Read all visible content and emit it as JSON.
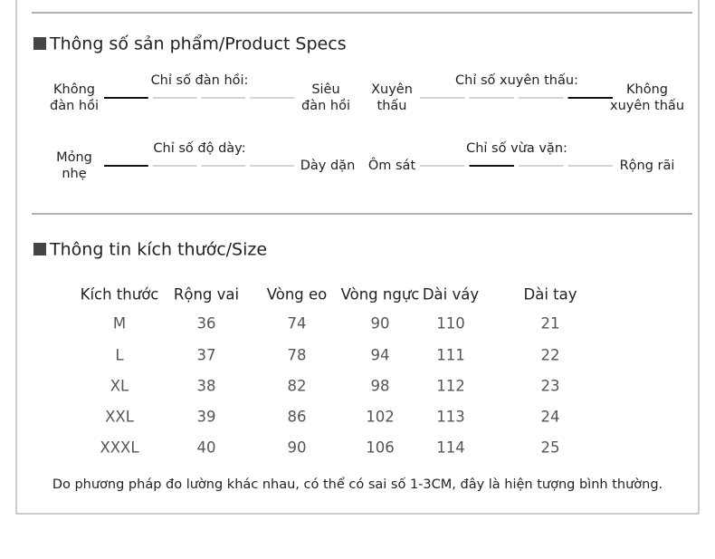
{
  "specs": {
    "title": "Thông số sản phẩm/Product Specs",
    "scales": [
      {
        "title": "Chỉ số đàn hồi:",
        "left": [
          "Không",
          "đàn hồi"
        ],
        "right": [
          "Siêu",
          "đàn hồi"
        ],
        "active": 0
      },
      {
        "title": "Chỉ số xuyên thấu:",
        "left": [
          "Xuyên",
          "thấu"
        ],
        "right": [
          "Không",
          "xuyên thấu"
        ],
        "active": 3
      },
      {
        "title": "Chỉ số độ dày:",
        "left": [
          "Mỏng",
          "nhẹ"
        ],
        "right": [
          "Dày dặn"
        ],
        "active": 0
      },
      {
        "title": "Chỉ số vừa vặn:",
        "left": [
          "Ôm sát"
        ],
        "right": [
          "Rộng rãi"
        ],
        "active": 1
      }
    ]
  },
  "size": {
    "title": "Thông tin kích thước/Size",
    "table": {
      "header": [
        "Kích thước",
        "Rộng vai",
        "Vòng eo",
        "Vòng ngực",
        "Dài váy",
        "Dài tay"
      ],
      "rows": [
        [
          "M",
          "36",
          "74",
          "90",
          "110",
          "21"
        ],
        [
          "L",
          "37",
          "78",
          "94",
          "111",
          "22"
        ],
        [
          "XL",
          "38",
          "82",
          "98",
          "112",
          "23"
        ],
        [
          "XXL",
          "39",
          "86",
          "102",
          "113",
          "24"
        ],
        [
          "XXXL",
          "40",
          "90",
          "106",
          "114",
          "25"
        ]
      ]
    },
    "note": "Do phương pháp đo lường khác nhau, có thể có sai số 1-3CM, đây là hiện tượng bình thường."
  }
}
